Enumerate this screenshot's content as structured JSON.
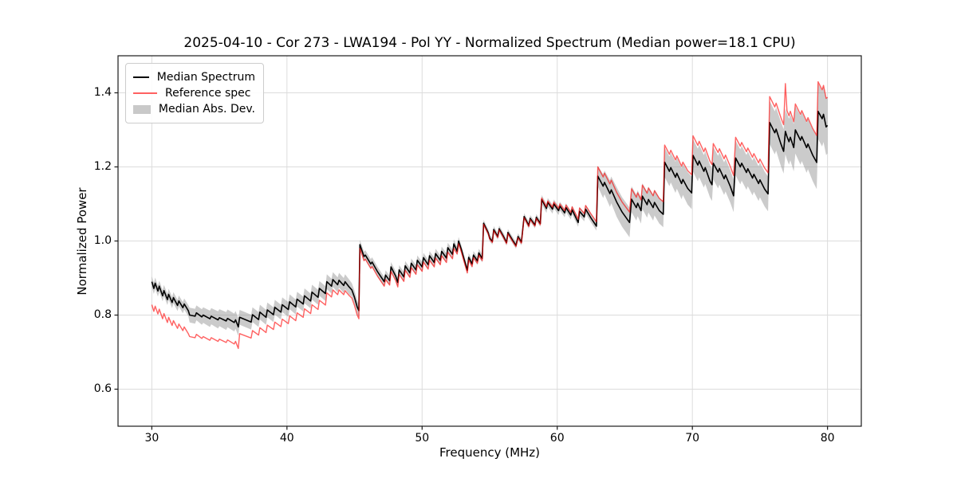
{
  "title": "2025-04-10 - Cor 273 - LWA194 - Pol YY - Normalized Spectrum (Median power=18.1 CPU)",
  "chart_data": {
    "type": "line",
    "title": "2025-04-10 - Cor 273 - LWA194 - Pol YY - Normalized Spectrum (Median power=18.1 CPU)",
    "xlabel": "Frequency (MHz)",
    "ylabel": "Normalized Power",
    "xlim": [
      27.5,
      82.5
    ],
    "ylim": [
      0.5,
      1.5
    ],
    "xticks": [
      30,
      40,
      50,
      60,
      70,
      80
    ],
    "xtick_labels": [
      "30",
      "40",
      "50",
      "60",
      "70",
      "80"
    ],
    "yticks": [
      0.6,
      0.8,
      1.0,
      1.2,
      1.4
    ],
    "ytick_labels": [
      "0.6",
      "0.8",
      "1.0",
      "1.2",
      "1.4"
    ],
    "grid": true,
    "grid_color": "#dcdcdc",
    "legend": {
      "position": "upper-left",
      "entries": [
        {
          "label": "Median Spectrum",
          "type": "line",
          "color": "#000000"
        },
        {
          "label": "Reference spec",
          "type": "line",
          "color": "rgba(255,0,0,0.62)"
        },
        {
          "label": "Median Abs. Dev.",
          "type": "band",
          "color": "#c9c9c9"
        }
      ]
    },
    "series_meta": [
      {
        "name": "Median Spectrum",
        "kind": "line",
        "color": "#000000",
        "width": 1.6
      },
      {
        "name": "Reference spec",
        "kind": "line",
        "color": "rgba(255,0,0,0.62)",
        "width": 1.4
      },
      {
        "name": "Median Abs. Dev.",
        "kind": "band",
        "color": "rgba(140,140,140,0.45)"
      }
    ],
    "x": [
      30.0,
      30.15,
      30.25,
      30.45,
      30.55,
      30.8,
      30.9,
      31.15,
      31.25,
      31.5,
      31.6,
      31.9,
      32.0,
      32.3,
      32.4,
      32.7,
      32.8,
      33.2,
      33.3,
      33.7,
      33.8,
      34.3,
      34.4,
      34.9,
      35.0,
      35.5,
      35.6,
      36.1,
      36.2,
      36.4,
      36.5,
      37.35,
      37.45,
      37.9,
      38.0,
      38.45,
      38.55,
      39.0,
      39.1,
      39.55,
      39.65,
      40.1,
      40.2,
      40.65,
      40.75,
      41.2,
      41.3,
      41.75,
      41.85,
      42.3,
      42.4,
      42.85,
      42.95,
      43.3,
      43.4,
      43.75,
      43.85,
      44.2,
      44.3,
      44.6,
      44.8,
      45.0,
      45.2,
      45.32,
      45.4,
      45.7,
      45.8,
      46.2,
      46.3,
      46.7,
      47.0,
      47.2,
      47.3,
      47.6,
      47.7,
      48.05,
      48.2,
      48.3,
      48.65,
      48.75,
      49.1,
      49.2,
      49.55,
      49.65,
      50.0,
      50.1,
      50.45,
      50.55,
      50.9,
      51.0,
      51.35,
      51.45,
      51.8,
      51.9,
      52.25,
      52.35,
      52.6,
      52.7,
      52.9,
      53.1,
      53.35,
      53.45,
      53.7,
      53.8,
      54.1,
      54.2,
      54.45,
      54.55,
      54.9,
      55.0,
      55.2,
      55.3,
      55.6,
      55.7,
      56.0,
      56.25,
      56.35,
      56.7,
      56.95,
      57.1,
      57.35,
      57.55,
      57.9,
      58.0,
      58.35,
      58.45,
      58.75,
      58.85,
      59.2,
      59.3,
      59.65,
      59.75,
      60.1,
      60.2,
      60.55,
      60.65,
      61.0,
      61.1,
      61.55,
      61.65,
      62.0,
      62.1,
      62.5,
      62.9,
      63.0,
      63.4,
      63.5,
      63.9,
      64.0,
      64.4,
      64.8,
      65.35,
      65.5,
      65.85,
      65.95,
      66.2,
      66.3,
      66.65,
      66.75,
      67.1,
      67.2,
      67.55,
      67.85,
      67.95,
      68.3,
      68.4,
      68.75,
      68.85,
      69.2,
      69.3,
      69.65,
      69.95,
      70.05,
      70.4,
      70.5,
      70.85,
      70.95,
      71.3,
      71.45,
      71.55,
      71.9,
      72.0,
      72.35,
      72.45,
      72.8,
      73.05,
      73.2,
      73.55,
      73.65,
      74.0,
      74.1,
      74.45,
      74.55,
      74.9,
      75.0,
      75.35,
      75.6,
      75.72,
      76.1,
      76.2,
      76.55,
      76.75,
      76.88,
      77.0,
      77.15,
      77.25,
      77.5,
      77.62,
      78.0,
      78.1,
      78.45,
      78.55,
      78.9,
      79.2,
      79.3,
      79.6,
      79.7,
      79.9,
      80.0
    ],
    "median": [
      0.89,
      0.872,
      0.886,
      0.865,
      0.878,
      0.852,
      0.866,
      0.842,
      0.856,
      0.834,
      0.847,
      0.826,
      0.838,
      0.82,
      0.83,
      0.812,
      0.8,
      0.797,
      0.806,
      0.795,
      0.8,
      0.79,
      0.797,
      0.787,
      0.793,
      0.784,
      0.791,
      0.78,
      0.787,
      0.768,
      0.794,
      0.781,
      0.801,
      0.788,
      0.808,
      0.794,
      0.814,
      0.801,
      0.821,
      0.808,
      0.828,
      0.815,
      0.836,
      0.822,
      0.843,
      0.83,
      0.852,
      0.838,
      0.862,
      0.848,
      0.872,
      0.858,
      0.89,
      0.878,
      0.896,
      0.882,
      0.894,
      0.88,
      0.89,
      0.876,
      0.868,
      0.848,
      0.822,
      0.812,
      0.99,
      0.958,
      0.962,
      0.938,
      0.943,
      0.917,
      0.901,
      0.89,
      0.908,
      0.893,
      0.93,
      0.905,
      0.888,
      0.922,
      0.903,
      0.933,
      0.914,
      0.94,
      0.922,
      0.948,
      0.93,
      0.955,
      0.936,
      0.96,
      0.942,
      0.966,
      0.948,
      0.972,
      0.954,
      0.982,
      0.964,
      0.992,
      0.972,
      1.0,
      0.978,
      0.952,
      0.921,
      0.956,
      0.938,
      0.962,
      0.946,
      0.968,
      0.953,
      1.048,
      1.022,
      1.008,
      0.999,
      1.031,
      1.012,
      1.033,
      1.014,
      0.996,
      1.023,
      1.002,
      0.988,
      1.012,
      0.997,
      1.066,
      1.042,
      1.061,
      1.043,
      1.064,
      1.047,
      1.112,
      1.088,
      1.104,
      1.086,
      1.1,
      1.082,
      1.094,
      1.076,
      1.09,
      1.07,
      1.084,
      1.05,
      1.08,
      1.065,
      1.086,
      1.062,
      1.04,
      1.175,
      1.148,
      1.158,
      1.128,
      1.138,
      1.105,
      1.078,
      1.05,
      1.113,
      1.09,
      1.102,
      1.082,
      1.121,
      1.098,
      1.112,
      1.09,
      1.104,
      1.082,
      1.072,
      1.213,
      1.188,
      1.198,
      1.172,
      1.183,
      1.155,
      1.166,
      1.142,
      1.13,
      1.231,
      1.205,
      1.216,
      1.188,
      1.198,
      1.162,
      1.152,
      1.21,
      1.186,
      1.196,
      1.168,
      1.178,
      1.148,
      1.122,
      1.224,
      1.2,
      1.21,
      1.185,
      1.195,
      1.17,
      1.18,
      1.155,
      1.165,
      1.14,
      1.127,
      1.32,
      1.292,
      1.302,
      1.262,
      1.242,
      1.296,
      1.282,
      1.268,
      1.28,
      1.252,
      1.3,
      1.272,
      1.282,
      1.252,
      1.262,
      1.232,
      1.212,
      1.35,
      1.33,
      1.342,
      1.308,
      1.312
    ],
    "reference": [
      0.828,
      0.81,
      0.824,
      0.803,
      0.816,
      0.79,
      0.804,
      0.78,
      0.794,
      0.772,
      0.785,
      0.764,
      0.776,
      0.758,
      0.768,
      0.75,
      0.742,
      0.739,
      0.748,
      0.737,
      0.742,
      0.732,
      0.739,
      0.729,
      0.735,
      0.726,
      0.733,
      0.722,
      0.729,
      0.71,
      0.75,
      0.738,
      0.758,
      0.746,
      0.766,
      0.753,
      0.773,
      0.761,
      0.781,
      0.769,
      0.789,
      0.777,
      0.798,
      0.785,
      0.806,
      0.794,
      0.817,
      0.804,
      0.828,
      0.815,
      0.84,
      0.827,
      0.86,
      0.849,
      0.868,
      0.855,
      0.868,
      0.855,
      0.866,
      0.853,
      0.846,
      0.826,
      0.8,
      0.79,
      0.98,
      0.947,
      0.951,
      0.926,
      0.931,
      0.905,
      0.889,
      0.878,
      0.896,
      0.881,
      0.918,
      0.893,
      0.876,
      0.91,
      0.891,
      0.921,
      0.902,
      0.928,
      0.91,
      0.936,
      0.918,
      0.943,
      0.924,
      0.948,
      0.93,
      0.954,
      0.936,
      0.96,
      0.942,
      0.97,
      0.952,
      0.98,
      0.965,
      0.993,
      0.971,
      0.945,
      0.914,
      0.949,
      0.931,
      0.955,
      0.94,
      0.962,
      0.947,
      1.045,
      1.019,
      1.005,
      0.996,
      1.028,
      1.009,
      1.03,
      1.011,
      0.993,
      1.02,
      0.999,
      0.985,
      1.009,
      0.994,
      1.063,
      1.039,
      1.058,
      1.04,
      1.061,
      1.044,
      1.116,
      1.092,
      1.108,
      1.091,
      1.105,
      1.088,
      1.1,
      1.082,
      1.097,
      1.077,
      1.092,
      1.059,
      1.089,
      1.074,
      1.096,
      1.073,
      1.052,
      1.2,
      1.173,
      1.183,
      1.154,
      1.164,
      1.131,
      1.105,
      1.078,
      1.141,
      1.118,
      1.13,
      1.111,
      1.151,
      1.129,
      1.143,
      1.122,
      1.136,
      1.115,
      1.106,
      1.259,
      1.234,
      1.245,
      1.219,
      1.23,
      1.202,
      1.213,
      1.19,
      1.179,
      1.284,
      1.258,
      1.269,
      1.241,
      1.251,
      1.216,
      1.206,
      1.263,
      1.239,
      1.249,
      1.222,
      1.232,
      1.202,
      1.177,
      1.28,
      1.256,
      1.266,
      1.241,
      1.251,
      1.226,
      1.236,
      1.211,
      1.221,
      1.197,
      1.184,
      1.39,
      1.362,
      1.372,
      1.333,
      1.314,
      1.425,
      1.352,
      1.338,
      1.35,
      1.322,
      1.37,
      1.342,
      1.352,
      1.323,
      1.333,
      1.304,
      1.285,
      1.43,
      1.408,
      1.42,
      1.385,
      1.388
    ],
    "mad": [
      0.015,
      0.015,
      0.015,
      0.015,
      0.015,
      0.015,
      0.015,
      0.015,
      0.015,
      0.015,
      0.015,
      0.015,
      0.015,
      0.015,
      0.015,
      0.015,
      0.02,
      0.02,
      0.02,
      0.021,
      0.021,
      0.022,
      0.022,
      0.023,
      0.023,
      0.024,
      0.024,
      0.024,
      0.024,
      0.024,
      0.02,
      0.02,
      0.02,
      0.02,
      0.02,
      0.02,
      0.02,
      0.02,
      0.02,
      0.02,
      0.02,
      0.02,
      0.02,
      0.02,
      0.02,
      0.02,
      0.02,
      0.02,
      0.02,
      0.02,
      0.02,
      0.02,
      0.02,
      0.02,
      0.02,
      0.02,
      0.02,
      0.02,
      0.02,
      0.02,
      0.018,
      0.018,
      0.018,
      0.018,
      0.013,
      0.013,
      0.013,
      0.013,
      0.013,
      0.013,
      0.013,
      0.013,
      0.013,
      0.013,
      0.013,
      0.013,
      0.013,
      0.013,
      0.013,
      0.013,
      0.013,
      0.013,
      0.013,
      0.013,
      0.013,
      0.013,
      0.013,
      0.013,
      0.013,
      0.013,
      0.013,
      0.013,
      0.013,
      0.013,
      0.013,
      0.013,
      0.011,
      0.011,
      0.011,
      0.011,
      0.011,
      0.011,
      0.011,
      0.011,
      0.011,
      0.011,
      0.011,
      0.009,
      0.009,
      0.009,
      0.009,
      0.009,
      0.009,
      0.009,
      0.009,
      0.009,
      0.009,
      0.009,
      0.009,
      0.009,
      0.009,
      0.009,
      0.009,
      0.009,
      0.009,
      0.009,
      0.009,
      0.012,
      0.012,
      0.012,
      0.012,
      0.012,
      0.012,
      0.012,
      0.012,
      0.012,
      0.012,
      0.012,
      0.012,
      0.012,
      0.012,
      0.012,
      0.012,
      0.012,
      0.028,
      0.032,
      0.032,
      0.036,
      0.036,
      0.04,
      0.04,
      0.04,
      0.035,
      0.035,
      0.035,
      0.035,
      0.035,
      0.035,
      0.035,
      0.035,
      0.035,
      0.035,
      0.035,
      0.04,
      0.04,
      0.04,
      0.042,
      0.042,
      0.042,
      0.042,
      0.044,
      0.044,
      0.044,
      0.044,
      0.044,
      0.044,
      0.044,
      0.044,
      0.044,
      0.044,
      0.044,
      0.044,
      0.044,
      0.044,
      0.044,
      0.044,
      0.047,
      0.047,
      0.047,
      0.047,
      0.047,
      0.047,
      0.047,
      0.047,
      0.047,
      0.047,
      0.047,
      0.058,
      0.058,
      0.058,
      0.06,
      0.06,
      0.062,
      0.062,
      0.062,
      0.062,
      0.064,
      0.064,
      0.066,
      0.066,
      0.068,
      0.068,
      0.07,
      0.072,
      0.075,
      0.075,
      0.075,
      0.076,
      0.076
    ]
  },
  "colors": {
    "background": "#ffffff",
    "spine": "#1a1a1a",
    "grid": "#dcdcdc",
    "median_line": "#000000",
    "reference_line": "rgba(255,0,0,0.62)",
    "mad_band": "rgba(140,140,140,0.45)"
  }
}
